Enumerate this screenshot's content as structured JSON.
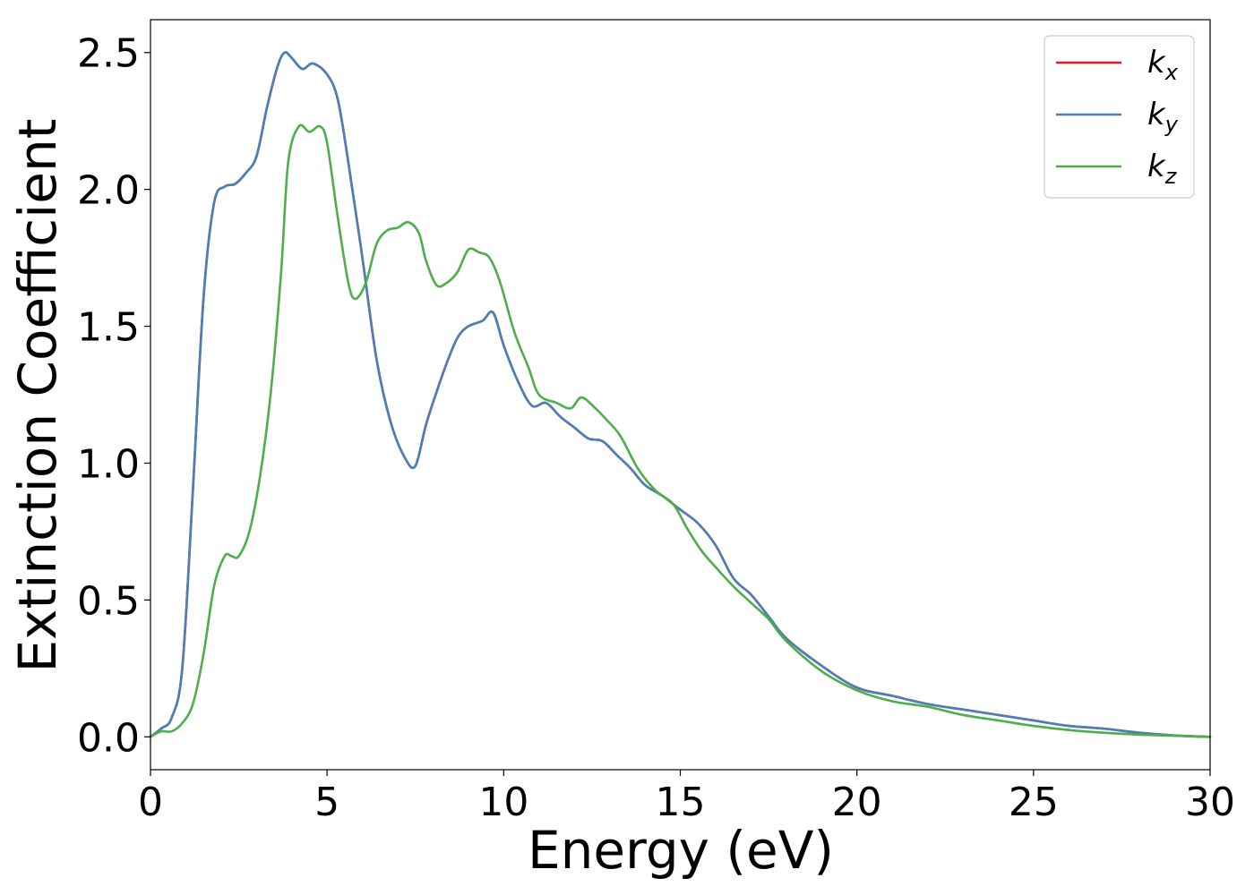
{
  "chart_data": {
    "type": "line",
    "xlabel": "Energy (eV)",
    "ylabel": "Extinction Coefficient",
    "xlim": [
      0,
      30
    ],
    "ylim": [
      -0.12,
      2.62
    ],
    "xticks": [
      0,
      5,
      10,
      15,
      20,
      25,
      30
    ],
    "xtick_labels": [
      "0",
      "5",
      "10",
      "15",
      "20",
      "25",
      "30"
    ],
    "yticks": [
      0.0,
      0.5,
      1.0,
      1.5,
      2.0,
      2.5
    ],
    "ytick_labels": [
      "0.0",
      "0.5",
      "1.0",
      "1.5",
      "2.0",
      "2.5"
    ],
    "grid": false,
    "legend_position": "top-right",
    "series": [
      {
        "name": "k",
        "subscript": "x",
        "color": "#e41a1c",
        "x": [
          0,
          0.3,
          0.6,
          0.9,
          1.2,
          1.5,
          1.8,
          2.1,
          2.4,
          2.7,
          3.0,
          3.3,
          3.6,
          3.8,
          4.0,
          4.3,
          4.6,
          5.0,
          5.3,
          5.6,
          6.0,
          6.4,
          6.8,
          7.2,
          7.5,
          7.8,
          8.1,
          8.4,
          8.7,
          9.0,
          9.4,
          9.7,
          10.0,
          10.4,
          10.8,
          11.2,
          11.6,
          12.0,
          12.4,
          12.8,
          13.2,
          13.6,
          14.0,
          14.5,
          15.0,
          15.5,
          16.0,
          16.5,
          17.0,
          17.5,
          18.0,
          19.0,
          20.0,
          21.0,
          22.0,
          23.0,
          24.0,
          25.0,
          26.0,
          27.0,
          28.0,
          29.0,
          30.0
        ],
        "y": [
          0.0,
          0.03,
          0.07,
          0.25,
          0.9,
          1.6,
          1.95,
          2.01,
          2.02,
          2.06,
          2.12,
          2.3,
          2.45,
          2.5,
          2.48,
          2.44,
          2.46,
          2.42,
          2.33,
          2.1,
          1.75,
          1.38,
          1.15,
          1.02,
          0.99,
          1.14,
          1.26,
          1.37,
          1.46,
          1.5,
          1.52,
          1.55,
          1.43,
          1.3,
          1.21,
          1.22,
          1.17,
          1.13,
          1.09,
          1.08,
          1.03,
          0.98,
          0.92,
          0.88,
          0.83,
          0.78,
          0.7,
          0.58,
          0.52,
          0.44,
          0.36,
          0.26,
          0.18,
          0.15,
          0.12,
          0.1,
          0.08,
          0.06,
          0.04,
          0.03,
          0.015,
          0.005,
          0.0
        ]
      },
      {
        "name": "k",
        "subscript": "y",
        "color": "#4a7fb7",
        "x": [
          0,
          0.3,
          0.6,
          0.9,
          1.2,
          1.5,
          1.8,
          2.1,
          2.4,
          2.7,
          3.0,
          3.3,
          3.6,
          3.8,
          4.0,
          4.3,
          4.6,
          5.0,
          5.3,
          5.6,
          6.0,
          6.4,
          6.8,
          7.2,
          7.5,
          7.8,
          8.1,
          8.4,
          8.7,
          9.0,
          9.4,
          9.7,
          10.0,
          10.4,
          10.8,
          11.2,
          11.6,
          12.0,
          12.4,
          12.8,
          13.2,
          13.6,
          14.0,
          14.5,
          15.0,
          15.5,
          16.0,
          16.5,
          17.0,
          17.5,
          18.0,
          19.0,
          20.0,
          21.0,
          22.0,
          23.0,
          24.0,
          25.0,
          26.0,
          27.0,
          28.0,
          29.0,
          30.0
        ],
        "y": [
          0.0,
          0.03,
          0.07,
          0.25,
          0.9,
          1.6,
          1.95,
          2.01,
          2.02,
          2.06,
          2.12,
          2.3,
          2.45,
          2.5,
          2.48,
          2.44,
          2.46,
          2.42,
          2.33,
          2.1,
          1.75,
          1.38,
          1.15,
          1.02,
          0.99,
          1.14,
          1.26,
          1.37,
          1.46,
          1.5,
          1.52,
          1.55,
          1.43,
          1.3,
          1.21,
          1.22,
          1.17,
          1.13,
          1.09,
          1.08,
          1.03,
          0.98,
          0.92,
          0.88,
          0.83,
          0.78,
          0.7,
          0.58,
          0.52,
          0.44,
          0.36,
          0.26,
          0.18,
          0.15,
          0.12,
          0.1,
          0.08,
          0.06,
          0.04,
          0.03,
          0.015,
          0.005,
          0.0
        ]
      },
      {
        "name": "k",
        "subscript": "z",
        "color": "#4daf4a",
        "x": [
          0,
          0.3,
          0.6,
          0.9,
          1.2,
          1.5,
          1.8,
          2.1,
          2.3,
          2.5,
          2.8,
          3.1,
          3.4,
          3.7,
          3.9,
          4.2,
          4.5,
          4.8,
          5.0,
          5.3,
          5.6,
          5.8,
          6.1,
          6.4,
          6.7,
          7.0,
          7.3,
          7.6,
          7.8,
          8.1,
          8.4,
          8.7,
          9.0,
          9.3,
          9.6,
          9.9,
          10.3,
          10.7,
          11.0,
          11.5,
          11.9,
          12.2,
          12.6,
          12.9,
          13.3,
          13.8,
          14.3,
          14.8,
          15.2,
          15.6,
          16.0,
          16.5,
          17.0,
          17.5,
          18.0,
          19.0,
          20.0,
          21.0,
          22.0,
          23.0,
          24.0,
          25.0,
          26.0,
          27.0,
          28.0,
          29.0,
          30.0
        ],
        "y": [
          0.0,
          0.02,
          0.02,
          0.05,
          0.12,
          0.3,
          0.55,
          0.66,
          0.66,
          0.66,
          0.75,
          0.95,
          1.25,
          1.7,
          2.1,
          2.23,
          2.21,
          2.23,
          2.17,
          1.9,
          1.66,
          1.6,
          1.66,
          1.8,
          1.85,
          1.86,
          1.88,
          1.84,
          1.74,
          1.65,
          1.66,
          1.7,
          1.78,
          1.77,
          1.75,
          1.66,
          1.48,
          1.35,
          1.25,
          1.22,
          1.2,
          1.24,
          1.2,
          1.16,
          1.1,
          0.98,
          0.9,
          0.85,
          0.76,
          0.68,
          0.62,
          0.55,
          0.49,
          0.43,
          0.35,
          0.24,
          0.17,
          0.13,
          0.11,
          0.08,
          0.06,
          0.04,
          0.025,
          0.015,
          0.008,
          0.004,
          0.0
        ]
      }
    ]
  }
}
